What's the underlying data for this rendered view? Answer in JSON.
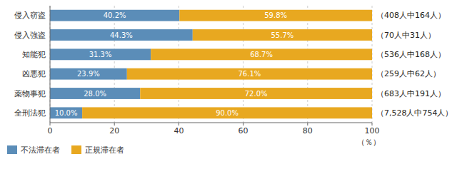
{
  "chart_data": {
    "type": "bar",
    "orientation": "horizontal",
    "stacked": true,
    "categories": [
      "侵入窃盗",
      "侵入強盗",
      "知能犯",
      "凶悪犯",
      "薬物事犯",
      "全刑法犯"
    ],
    "series": [
      {
        "name": "不法滞在者",
        "color": "#5b8db8",
        "values": [
          40.2,
          44.3,
          31.3,
          23.9,
          28.0,
          10.0
        ],
        "value_labels": [
          "40.2%",
          "44.3%",
          "31.3%",
          "23.9%",
          "28.0%",
          "10.0%"
        ]
      },
      {
        "name": "正規滞在者",
        "color": "#e8a820",
        "values": [
          59.8,
          55.7,
          68.7,
          76.1,
          72.0,
          90.0
        ],
        "value_labels": [
          "59.8%",
          "55.7%",
          "68.7%",
          "76.1%",
          "72.0%",
          "90.0%"
        ]
      }
    ],
    "annotations": [
      "（408人中164人）",
      "（70人中31人）",
      "（536人中168人）",
      "（259人中62人）",
      "（683人中191人）",
      "（7,528人中754人）"
    ],
    "x_label": "（％）",
    "xlim": [
      0,
      100
    ],
    "xticks": [
      0,
      20,
      40,
      60,
      80,
      100
    ],
    "grid": true,
    "data_labels": true,
    "legend": "lower left"
  }
}
